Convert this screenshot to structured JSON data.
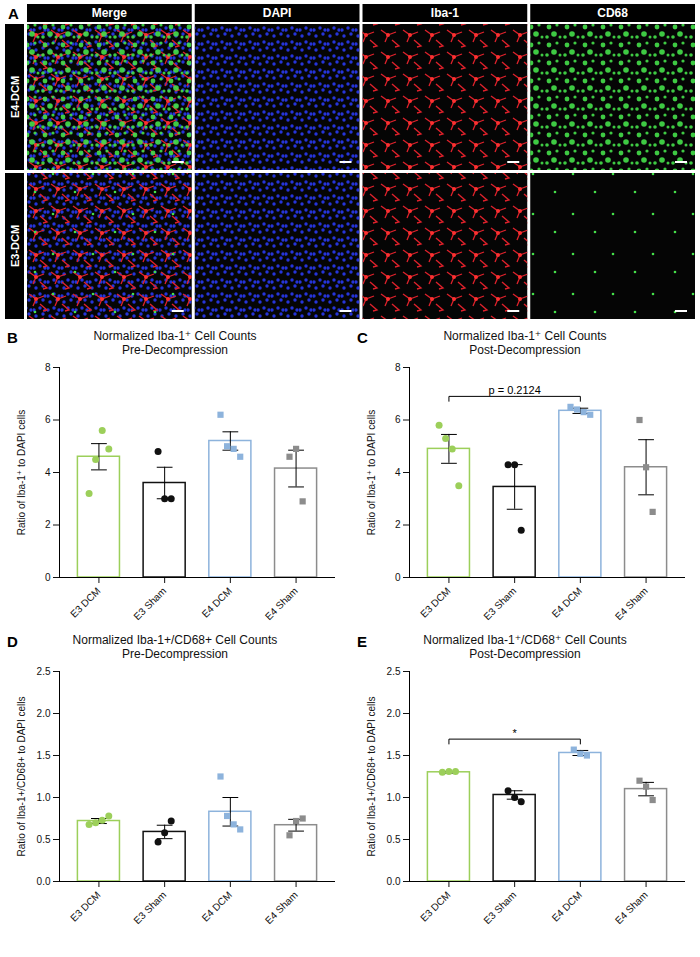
{
  "panel_a": {
    "panel": "A",
    "columns": [
      "Merge",
      "DAPI",
      "Iba-1",
      "CD68"
    ],
    "rows": [
      "E4-DCM",
      "E3-DCM"
    ]
  },
  "chart_data": [
    {
      "type": "bar",
      "panel": "B",
      "title": "Normalized Iba-1⁺ Cell Counts",
      "subtitle": "Pre-Decompression",
      "ylabel": "Ratio of Iba-1⁺ to DAPI cells",
      "categories": [
        "E3 DCM",
        "E3 Sham",
        "E4 DCM",
        "E4 Sham"
      ],
      "values": [
        4.6,
        3.6,
        5.2,
        4.15
      ],
      "errors": [
        0.5,
        0.6,
        0.35,
        0.7
      ],
      "points": [
        [
          3.2,
          4.5,
          5.6,
          4.9
        ],
        [
          4.8,
          3.0,
          3.0
        ],
        [
          6.2,
          5.0,
          4.9,
          4.6
        ],
        [
          4.6,
          4.9,
          2.9
        ]
      ],
      "colors": [
        "#9ccf5a",
        "#111111",
        "#8db3dc",
        "#8c8c8c"
      ],
      "markers": [
        "circle",
        "circle",
        "square",
        "square"
      ],
      "ylim": [
        0,
        8
      ],
      "yticks": [
        0,
        2,
        4,
        6,
        8
      ],
      "annotations": []
    },
    {
      "type": "bar",
      "panel": "C",
      "title": "Normalized Iba-1⁺ Cell Counts",
      "subtitle": "Post-Decompression",
      "ylabel": "Ratio of Iba-1⁺ to DAPI cells",
      "categories": [
        "E3 DCM",
        "E3 Sham",
        "E4 DCM",
        "E4 Sham"
      ],
      "values": [
        4.9,
        3.45,
        6.35,
        4.2
      ],
      "errors": [
        0.55,
        0.85,
        0.1,
        1.05
      ],
      "points": [
        [
          5.8,
          5.3,
          4.9,
          3.5
        ],
        [
          4.3,
          4.3,
          1.8
        ],
        [
          6.5,
          6.4,
          6.3,
          6.2
        ],
        [
          6.0,
          4.2,
          2.5
        ]
      ],
      "colors": [
        "#9ccf5a",
        "#111111",
        "#8db3dc",
        "#8c8c8c"
      ],
      "markers": [
        "circle",
        "circle",
        "square",
        "square"
      ],
      "ylim": [
        0,
        8
      ],
      "yticks": [
        0,
        2,
        4,
        6,
        8
      ],
      "annotations": [
        {
          "text": "p = 0.2124",
          "from": "E3 DCM",
          "to": "E4 DCM"
        }
      ]
    },
    {
      "type": "bar",
      "panel": "D",
      "title": "Normalized Iba-1+/CD68+ Cell Counts",
      "subtitle": "Pre-Decompression",
      "ylabel": "Ratio of Iba-1+/CD68+ to DAPI cells",
      "categories": [
        "E3 DCM",
        "E3 Sham",
        "E4 DCM",
        "E4 Sham"
      ],
      "values": [
        0.72,
        0.59,
        0.83,
        0.67
      ],
      "errors": [
        0.03,
        0.08,
        0.17,
        0.07
      ],
      "points": [
        [
          0.68,
          0.7,
          0.73,
          0.78
        ],
        [
          0.47,
          0.58,
          0.72
        ],
        [
          1.25,
          0.78,
          0.68,
          0.62
        ],
        [
          0.55,
          0.72,
          0.75
        ]
      ],
      "colors": [
        "#9ccf5a",
        "#111111",
        "#8db3dc",
        "#8c8c8c"
      ],
      "markers": [
        "circle",
        "circle",
        "square",
        "square"
      ],
      "ylim": [
        0,
        2.5
      ],
      "yticks": [
        {
          "value": 0,
          "label": "0.0"
        },
        0.5,
        {
          "value": 1,
          "label": "1.0"
        },
        1.5,
        {
          "value": 2,
          "label": "2.0"
        },
        2.5
      ],
      "annotations": []
    },
    {
      "type": "bar",
      "panel": "E",
      "title": "Normalized Iba-1⁺/CD68⁺ Cell Counts",
      "subtitle": "Post-Decompression",
      "ylabel": "Ratio of Iba-1+/CD68+ to DAPI cells",
      "categories": [
        "E3 DCM",
        "E3 Sham",
        "E4 DCM",
        "E4 Sham"
      ],
      "values": [
        1.3,
        1.03,
        1.53,
        1.1
      ],
      "errors": [
        0.01,
        0.05,
        0.03,
        0.08
      ],
      "points": [
        [
          1.3,
          1.31,
          1.31
        ],
        [
          1.08,
          1.0,
          0.95
        ],
        [
          1.57,
          1.52,
          1.5
        ],
        [
          1.2,
          1.13,
          0.97
        ]
      ],
      "colors": [
        "#9ccf5a",
        "#111111",
        "#8db3dc",
        "#8c8c8c"
      ],
      "markers": [
        "circle",
        "circle",
        "square",
        "square"
      ],
      "ylim": [
        0,
        2.5
      ],
      "yticks": [
        {
          "value": 0,
          "label": "0.0"
        },
        0.5,
        {
          "value": 1,
          "label": "1.0"
        },
        1.5,
        {
          "value": 2,
          "label": "2.0"
        },
        2.5
      ],
      "annotations": [
        {
          "text": "*",
          "from": "E3 DCM",
          "to": "E4 DCM"
        }
      ]
    }
  ]
}
